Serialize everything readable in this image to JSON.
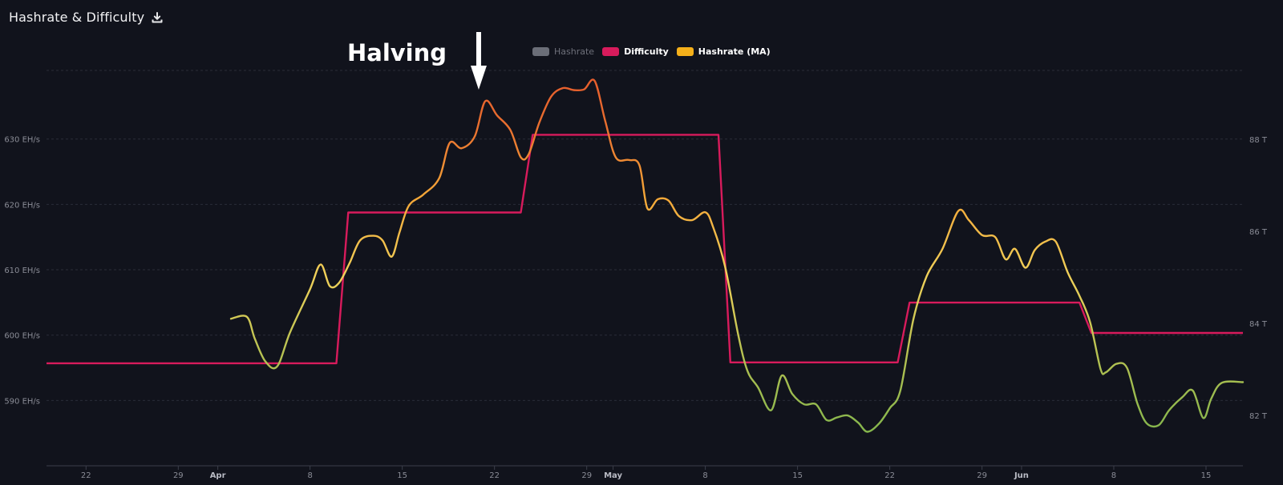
{
  "header": {
    "title": "Hashrate & Difficulty",
    "download_icon": "download-icon"
  },
  "legend": [
    {
      "label": "Hashrate",
      "color": "#6b6e78",
      "active": false
    },
    {
      "label": "Difficulty",
      "color": "#d81b5c",
      "active": true
    },
    {
      "label": "Hashrate (MA)",
      "color": "#f5b01a",
      "active": true
    }
  ],
  "chart_data": {
    "type": "line",
    "title": "Hashrate & Difficulty",
    "xlabel": "",
    "ylabel": "",
    "x_ticks": [
      "22",
      "29",
      "Apr",
      "8",
      "15",
      "22",
      "29",
      "May",
      "8",
      "15",
      "22",
      "29",
      "Jun",
      "8",
      "15"
    ],
    "x_tick_days": [
      0,
      7,
      10,
      17,
      24,
      31,
      38,
      40,
      47,
      54,
      61,
      68,
      71,
      78,
      85
    ],
    "x_range_days": [
      -3,
      87.8
    ],
    "y_left": {
      "ticks": [
        590,
        600,
        610,
        620,
        630
      ],
      "labels": [
        "590 EH/s",
        "600 EH/s",
        "610 EH/s",
        "620 EH/s",
        "630 EH/s"
      ],
      "range": [
        580,
        640.5
      ]
    },
    "y_right": {
      "ticks": [
        82,
        84,
        86,
        88
      ],
      "labels": [
        "82 T",
        "84 T",
        "86 T",
        "88 T"
      ],
      "range": [
        80.9,
        89.5
      ]
    },
    "grid": true,
    "legend_position": "top-center",
    "annotation": {
      "text": "Halving",
      "x_day": 29.8
    },
    "series": [
      {
        "name": "Difficulty",
        "color": "#d81b5c",
        "axis": "right",
        "step": true,
        "points": [
          [
            -3,
            83.13
          ],
          [
            19,
            83.13
          ],
          [
            19.9,
            86.41
          ],
          [
            33,
            86.41
          ],
          [
            33.9,
            88.1
          ],
          [
            48,
            88.1
          ],
          [
            48.9,
            83.15
          ],
          [
            61.6,
            83.15
          ],
          [
            62.5,
            84.45
          ],
          [
            75.4,
            84.45
          ],
          [
            76.3,
            83.79
          ],
          [
            87.8,
            83.79
          ]
        ]
      },
      {
        "name": "Hashrate (MA)",
        "axis": "left",
        "gradient": true,
        "points": [
          [
            11,
            602.5
          ],
          [
            12.2,
            602.8
          ],
          [
            12.8,
            599.5
          ],
          [
            13.6,
            596
          ],
          [
            14.5,
            595.2
          ],
          [
            15.5,
            600.5
          ],
          [
            17,
            607
          ],
          [
            17.8,
            610.8
          ],
          [
            18.5,
            607.5
          ],
          [
            19.2,
            608
          ],
          [
            20,
            611
          ],
          [
            20.8,
            614.5
          ],
          [
            21.8,
            615.2
          ],
          [
            22.5,
            614.5
          ],
          [
            23.2,
            612
          ],
          [
            23.8,
            615.8
          ],
          [
            24.5,
            619.8
          ],
          [
            25.6,
            621.5
          ],
          [
            26.8,
            624
          ],
          [
            27.6,
            629.4
          ],
          [
            28.5,
            628.6
          ],
          [
            29.5,
            630.4
          ],
          [
            30.3,
            635.8
          ],
          [
            31.2,
            633.6
          ],
          [
            32.2,
            631.4
          ],
          [
            33,
            627.2
          ],
          [
            33.6,
            627.7
          ],
          [
            34.4,
            632.5
          ],
          [
            35.3,
            636.5
          ],
          [
            36.2,
            637.8
          ],
          [
            37,
            637.5
          ],
          [
            37.8,
            637.6
          ],
          [
            38.6,
            638.9
          ],
          [
            39.4,
            632.8
          ],
          [
            40.2,
            627.2
          ],
          [
            41.2,
            626.8
          ],
          [
            42,
            626
          ],
          [
            42.6,
            619.4
          ],
          [
            43.4,
            620.8
          ],
          [
            44.2,
            620.6
          ],
          [
            45,
            618.2
          ],
          [
            46,
            617.6
          ],
          [
            47,
            618.8
          ],
          [
            47.6,
            616.5
          ],
          [
            48.5,
            610.5
          ],
          [
            49.5,
            600
          ],
          [
            50.2,
            594.5
          ],
          [
            51,
            592
          ],
          [
            52,
            588.5
          ],
          [
            52.8,
            593.8
          ],
          [
            53.6,
            591
          ],
          [
            54.5,
            589.4
          ],
          [
            55.4,
            589.4
          ],
          [
            56.2,
            587
          ],
          [
            57,
            587.4
          ],
          [
            57.8,
            587.7
          ],
          [
            58.6,
            586.6
          ],
          [
            59.3,
            585.2
          ],
          [
            60.2,
            586.5
          ],
          [
            61,
            588.8
          ],
          [
            61.8,
            591.5
          ],
          [
            62.8,
            602.5
          ],
          [
            63.8,
            609
          ],
          [
            65,
            613.2
          ],
          [
            66.2,
            619
          ],
          [
            67,
            617.6
          ],
          [
            68,
            615.3
          ],
          [
            69,
            615
          ],
          [
            69.8,
            611.6
          ],
          [
            70.5,
            613.2
          ],
          [
            71.3,
            610.3
          ],
          [
            72,
            613
          ],
          [
            72.8,
            614.3
          ],
          [
            73.6,
            614.3
          ],
          [
            74.5,
            609.6
          ],
          [
            75.4,
            606
          ],
          [
            76.2,
            602
          ],
          [
            77,
            594.8
          ],
          [
            77.4,
            594.3
          ],
          [
            78.2,
            595.6
          ],
          [
            79,
            595
          ],
          [
            79.8,
            589.5
          ],
          [
            80.5,
            586.5
          ],
          [
            81.4,
            586.2
          ],
          [
            82.2,
            588.5
          ],
          [
            83.2,
            590.5
          ],
          [
            84,
            591.5
          ],
          [
            84.8,
            587.3
          ],
          [
            85.4,
            590.3
          ],
          [
            86.2,
            592.7
          ],
          [
            87.8,
            592.8
          ]
        ]
      }
    ]
  }
}
